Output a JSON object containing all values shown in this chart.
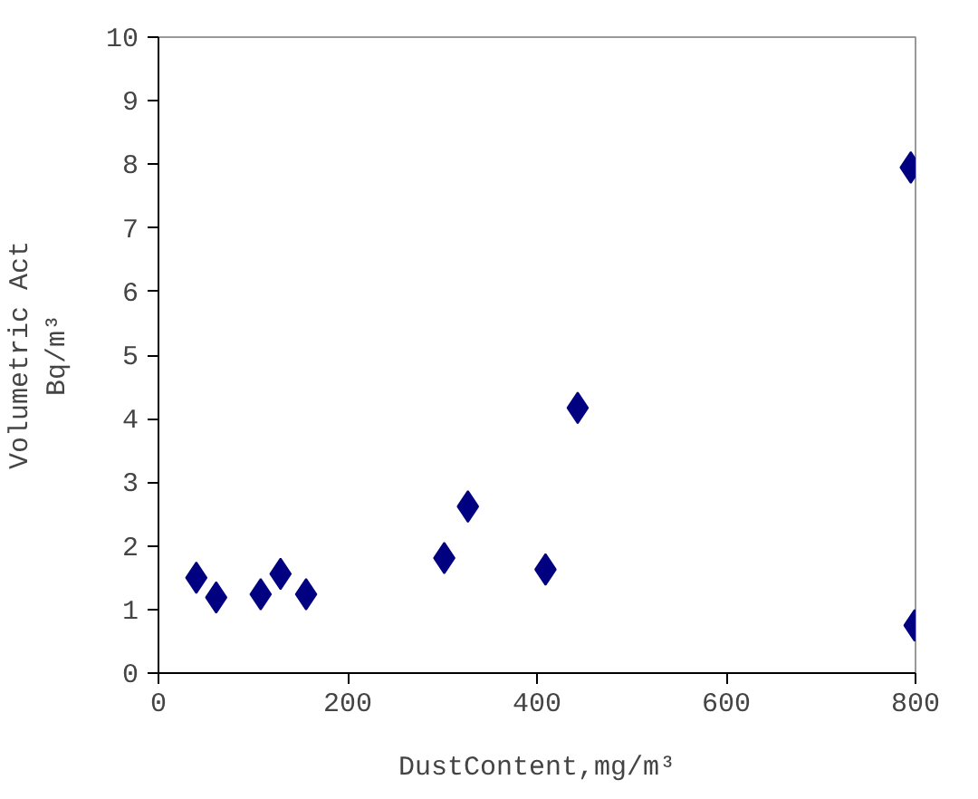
{
  "chart_data": {
    "type": "scatter",
    "xlabel": "DustContent,mg/m³",
    "ylabel": "Volumetric Act\nBq/m³",
    "x": [
      40,
      61,
      108,
      129,
      156,
      302,
      327,
      409,
      443,
      795,
      799
    ],
    "values": [
      1.5,
      1.19,
      1.24,
      1.56,
      1.24,
      1.81,
      2.62,
      1.63,
      4.17,
      7.95,
      0.75
    ],
    "color": "#000080",
    "marker": "diamond",
    "xlim": [
      0,
      800
    ],
    "ylim": [
      0,
      10
    ],
    "xticks": [
      0,
      200,
      400,
      600,
      800
    ],
    "yticks": [
      0,
      1,
      2,
      3,
      4,
      5,
      6,
      7,
      8,
      9,
      10
    ],
    "grid": false,
    "legend": false
  }
}
